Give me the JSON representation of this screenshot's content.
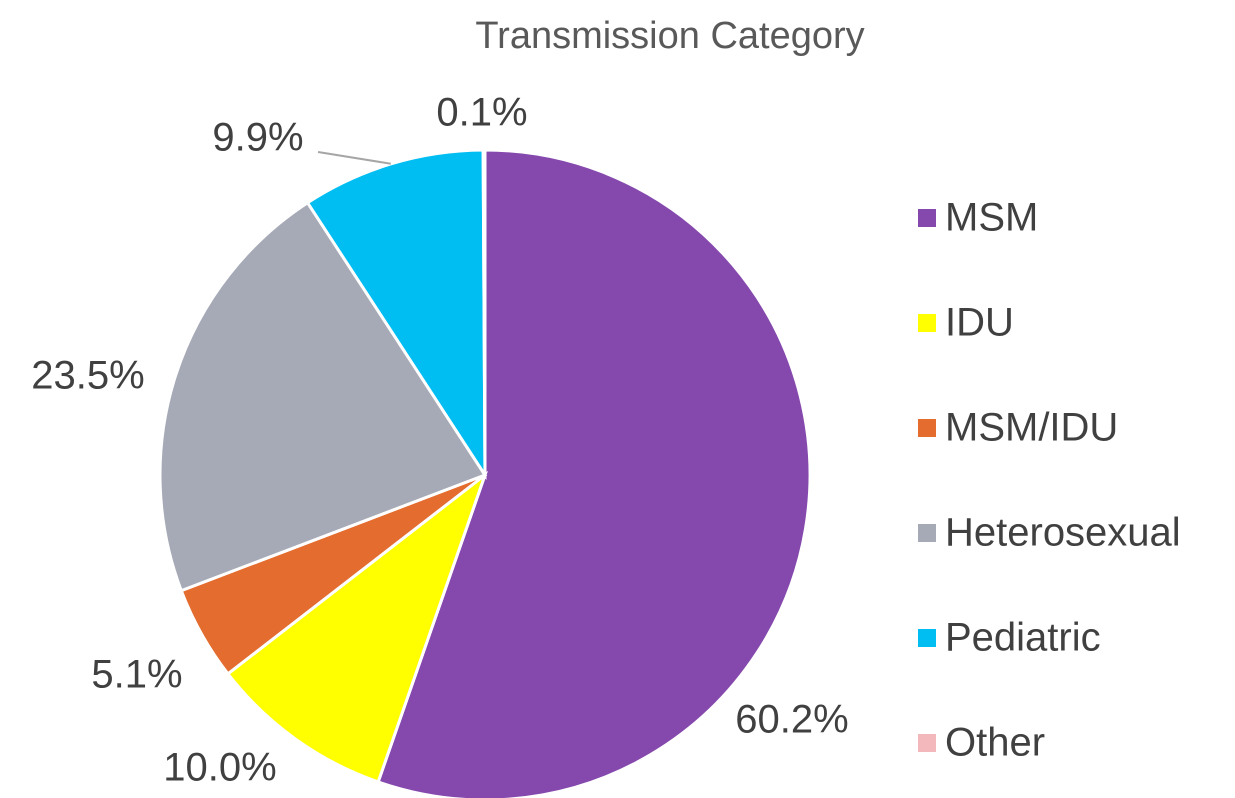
{
  "chart_data": {
    "type": "pie",
    "title": "Transmission Category",
    "categories": [
      "MSM",
      "IDU",
      "MSM/IDU",
      "Heterosexual",
      "Pediatric",
      "Other"
    ],
    "values": [
      60.2,
      10.0,
      5.1,
      23.5,
      9.9,
      0.1
    ],
    "value_labels": [
      "60.2%",
      "10.0%",
      "5.1%",
      "23.5%",
      "9.9%",
      "0.1%"
    ],
    "colors": [
      "#8549ae",
      "#ffff00",
      "#e36c2e",
      "#a6a9b6",
      "#00bdf2",
      "#f2b8bb"
    ],
    "legend": "right"
  }
}
